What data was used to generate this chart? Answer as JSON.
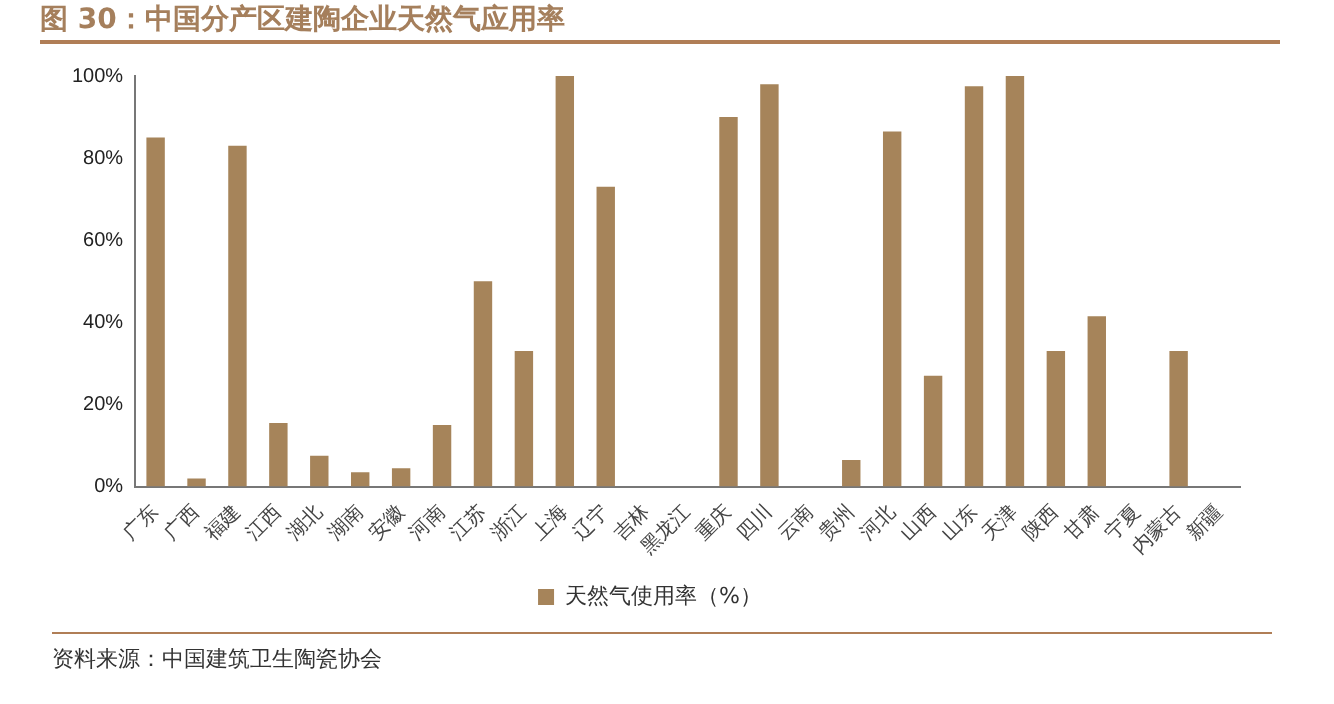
{
  "chart_data": {
    "type": "bar",
    "title": "图 30：中国分产区建陶企业天然气应用率",
    "categories": [
      "广东",
      "广西",
      "福建",
      "江西",
      "湖北",
      "湖南",
      "安徽",
      "河南",
      "江苏",
      "浙江",
      "上海",
      "辽宁",
      "吉林",
      "黑龙江",
      "重庆",
      "四川",
      "云南",
      "贵州",
      "河北",
      "山西",
      "山东",
      "天津",
      "陕西",
      "甘肃",
      "宁夏",
      "内蒙古",
      "新疆"
    ],
    "series": [
      {
        "name": "天然气使用率（%）",
        "color": "#a6845a",
        "values": [
          85,
          2,
          83,
          15.5,
          7.5,
          3.5,
          4.5,
          15,
          50,
          33,
          100,
          73,
          0,
          0,
          90,
          98,
          0,
          6.5,
          86.5,
          27,
          97.5,
          100,
          33,
          41.5,
          0,
          33,
          0
        ]
      }
    ],
    "ylim": [
      0,
      100
    ],
    "yticks": [
      {
        "value": 0,
        "label": "0%"
      },
      {
        "value": 20,
        "label": "20%"
      },
      {
        "value": 40,
        "label": "40%"
      },
      {
        "value": 60,
        "label": "60%"
      },
      {
        "value": 80,
        "label": "80%"
      },
      {
        "value": 100,
        "label": "100%"
      }
    ],
    "grid": false,
    "legend": "bottom",
    "annotations": [
      "资料来源：中国建筑卫生陶瓷协会"
    ]
  }
}
